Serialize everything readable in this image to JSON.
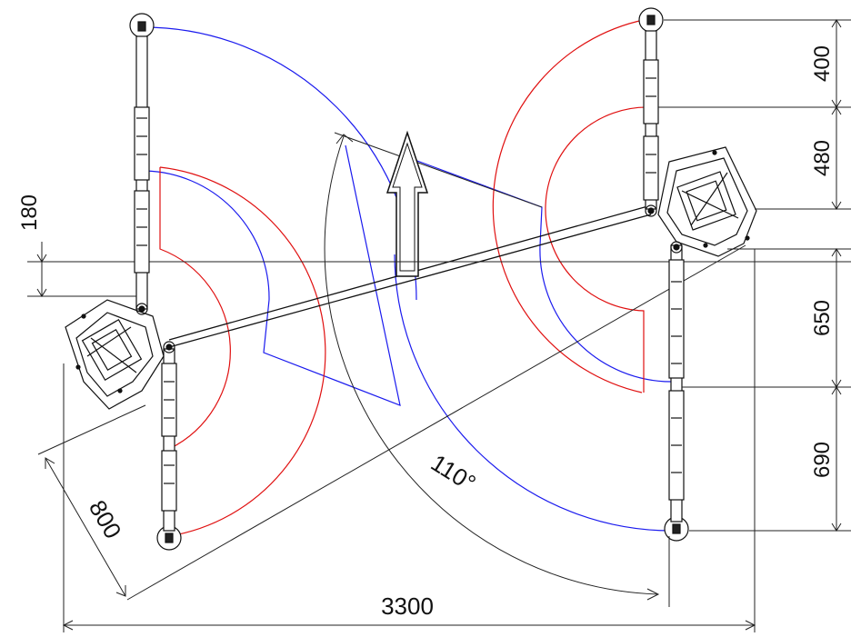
{
  "dimensions": {
    "top_right_1": "400",
    "top_right_2": "480",
    "left_offset": "180",
    "right_mid": "650",
    "right_low": "690",
    "arm_length": "800",
    "swing_angle": "110°",
    "total_width": "3300"
  },
  "colors": {
    "frame": "#111111",
    "arc_red": "#e01010",
    "arc_blue": "#1a1aee",
    "dim_line": "#222222"
  }
}
